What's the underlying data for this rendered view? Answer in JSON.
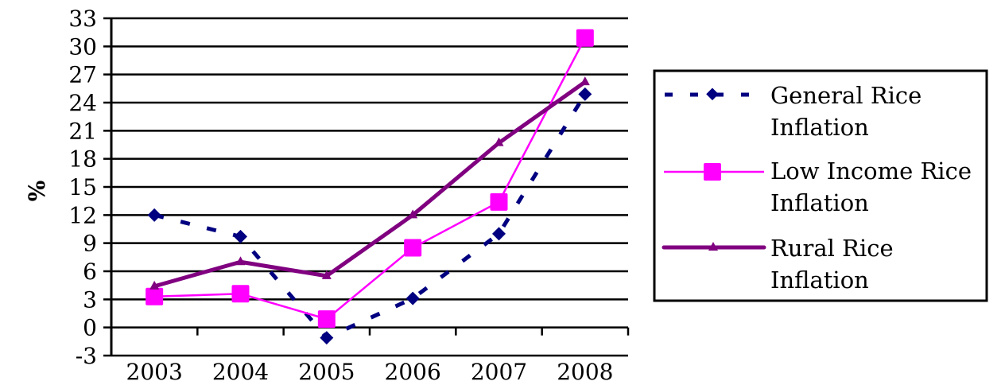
{
  "chart_data": {
    "type": "line",
    "title": "",
    "xlabel": "",
    "ylabel": "%",
    "categories": [
      "2003",
      "2004",
      "2005",
      "2006",
      "2007",
      "2008"
    ],
    "ylim": [
      -3,
      33
    ],
    "yticks": [
      -3,
      0,
      3,
      6,
      9,
      12,
      15,
      18,
      21,
      24,
      27,
      30,
      33
    ],
    "grid": true,
    "legend_position": "right",
    "series": [
      {
        "name": "General Rice Inflation",
        "color": "#000080",
        "style": "dashed",
        "marker": "diamond",
        "values": [
          12.0,
          9.7,
          -1.1,
          3.1,
          10.0,
          24.9
        ]
      },
      {
        "name": "Low Income Rice Inflation",
        "color": "#FF00FF",
        "style": "solid",
        "marker": "square",
        "values": [
          3.3,
          3.6,
          0.9,
          8.5,
          13.4,
          30.9
        ]
      },
      {
        "name": "Rural Rice Inflation",
        "color": "#800080",
        "style": "solid-thick",
        "marker": "triangle",
        "values": [
          4.4,
          7.0,
          5.5,
          12.0,
          19.7,
          26.2
        ]
      }
    ]
  },
  "legend": {
    "items": [
      {
        "line1": "General Rice",
        "line2": "Inflation"
      },
      {
        "line1": "Low Income Rice",
        "line2": "Inflation"
      },
      {
        "line1": "Rural Rice",
        "line2": "Inflation"
      }
    ]
  }
}
